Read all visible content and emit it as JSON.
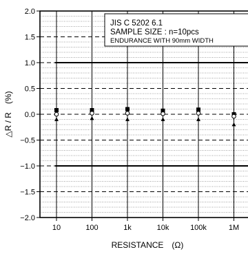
{
  "chart_data": {
    "type": "scatter",
    "title": "",
    "xlabel": "RESISTANCE　(Ω)",
    "ylabel": "△R / R　(%)",
    "x_scale": "log",
    "categories": [
      "10",
      "100",
      "1k",
      "10k",
      "100k",
      "1M"
    ],
    "x_values": [
      10,
      100,
      1000,
      10000,
      100000,
      1000000
    ],
    "ylim": [
      -2.0,
      2.0
    ],
    "y_ticks": [
      "2.0",
      "1.5",
      "1.0",
      "0.5",
      "0.0",
      "−0.5",
      "−1.0",
      "−1.5",
      "−2.0"
    ],
    "y_tick_values": [
      2.0,
      1.5,
      1.0,
      0.5,
      0.0,
      -0.5,
      -1.0,
      -1.5,
      -2.0
    ],
    "limits": [
      1.0,
      -1.0
    ],
    "grid": true,
    "legend_position": "top-right",
    "annotation": {
      "line1": "JIS C 5202 6.1",
      "line2": "SAMPLE SIZE : n=10pcs",
      "line3": "ENDURANCE WITH 90mm WIDTH"
    },
    "series": [
      {
        "marker": "square",
        "values": [
          0.08,
          0.08,
          0.1,
          0.07,
          0.09,
          0.0
        ]
      },
      {
        "marker": "circle",
        "values": [
          0.0,
          0.02,
          0.02,
          0.01,
          0.02,
          -0.04
        ]
      },
      {
        "marker": "triangle",
        "values": [
          -0.1,
          -0.08,
          -0.1,
          -0.1,
          -0.1,
          -0.2
        ]
      }
    ]
  }
}
